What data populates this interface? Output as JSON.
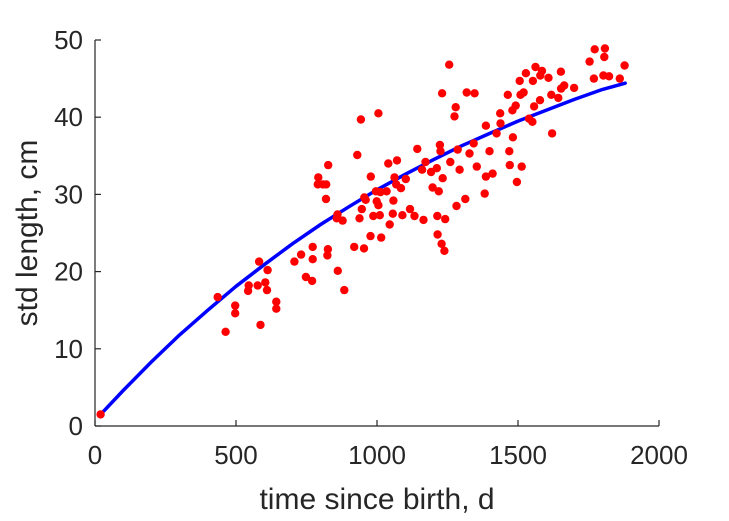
{
  "chart_data": {
    "type": "scatter",
    "title": "",
    "xlabel": "time since birth, d",
    "ylabel": "std length, cm",
    "xlim": [
      0,
      2000
    ],
    "ylim": [
      0,
      50
    ],
    "xticks": [
      0,
      500,
      1000,
      1500,
      2000
    ],
    "yticks": [
      0,
      10,
      20,
      30,
      40,
      50
    ],
    "grid": false,
    "legend": "none",
    "colors": {
      "points": "#ff0000",
      "curve": "#0000ff",
      "axes": "#262626"
    },
    "series": [
      {
        "kind": "scatter",
        "points": [
          [
            20,
            1.5
          ],
          [
            435,
            16.7
          ],
          [
            463,
            12.2
          ],
          [
            497,
            14.6
          ],
          [
            497,
            15.6
          ],
          [
            543,
            17.5
          ],
          [
            545,
            18.2
          ],
          [
            577,
            18.2
          ],
          [
            582,
            21.3
          ],
          [
            587,
            13.1
          ],
          [
            604,
            18.6
          ],
          [
            610,
            17.6
          ],
          [
            612,
            20.2
          ],
          [
            643,
            16.1
          ],
          [
            643,
            15.2
          ],
          [
            707,
            21.3
          ],
          [
            731,
            22.2
          ],
          [
            748,
            19.3
          ],
          [
            770,
            18.8
          ],
          [
            772,
            21.6
          ],
          [
            772,
            23.2
          ],
          [
            790,
            31.3
          ],
          [
            792,
            32.2
          ],
          [
            808,
            31.3
          ],
          [
            819,
            29.4
          ],
          [
            820,
            31.3
          ],
          [
            824,
            22.1
          ],
          [
            826,
            22.9
          ],
          [
            827,
            33.8
          ],
          [
            857,
            26.9
          ],
          [
            860,
            27.4
          ],
          [
            861,
            20.1
          ],
          [
            878,
            26.6
          ],
          [
            884,
            17.6
          ],
          [
            919,
            23.2
          ],
          [
            930,
            35.1
          ],
          [
            938,
            26.9
          ],
          [
            943,
            39.7
          ],
          [
            946,
            28.1
          ],
          [
            954,
            23.0
          ],
          [
            955,
            29.6
          ],
          [
            960,
            29.3
          ],
          [
            977,
            24.6
          ],
          [
            978,
            32.3
          ],
          [
            987,
            27.2
          ],
          [
            996,
            30.4
          ],
          [
            999,
            29.1
          ],
          [
            1005,
            40.5
          ],
          [
            1005,
            28.6
          ],
          [
            1010,
            27.3
          ],
          [
            1012,
            30.3
          ],
          [
            1015,
            24.4
          ],
          [
            1034,
            30.4
          ],
          [
            1040,
            34.0
          ],
          [
            1045,
            26.1
          ],
          [
            1056,
            27.5
          ],
          [
            1058,
            29.2
          ],
          [
            1062,
            32.2
          ],
          [
            1068,
            31.3
          ],
          [
            1071,
            34.4
          ],
          [
            1085,
            30.8
          ],
          [
            1090,
            27.3
          ],
          [
            1102,
            32.0
          ],
          [
            1117,
            28.1
          ],
          [
            1133,
            27.2
          ],
          [
            1143,
            35.9
          ],
          [
            1160,
            33.2
          ],
          [
            1165,
            26.7
          ],
          [
            1172,
            34.2
          ],
          [
            1192,
            32.9
          ],
          [
            1197,
            30.9
          ],
          [
            1212,
            33.4
          ],
          [
            1214,
            27.2
          ],
          [
            1215,
            24.8
          ],
          [
            1219,
            30.4
          ],
          [
            1223,
            36.4
          ],
          [
            1225,
            35.6
          ],
          [
            1229,
            23.6
          ],
          [
            1231,
            43.1
          ],
          [
            1233,
            32.1
          ],
          [
            1239,
            22.7
          ],
          [
            1242,
            26.8
          ],
          [
            1256,
            46.8
          ],
          [
            1260,
            34.2
          ],
          [
            1275,
            40.1
          ],
          [
            1279,
            41.3
          ],
          [
            1282,
            28.5
          ],
          [
            1286,
            35.8
          ],
          [
            1293,
            33.2
          ],
          [
            1313,
            29.4
          ],
          [
            1318,
            43.2
          ],
          [
            1328,
            35.3
          ],
          [
            1343,
            36.6
          ],
          [
            1346,
            43.1
          ],
          [
            1354,
            33.6
          ],
          [
            1382,
            30.1
          ],
          [
            1386,
            32.3
          ],
          [
            1386,
            38.9
          ],
          [
            1399,
            35.6
          ],
          [
            1410,
            32.7
          ],
          [
            1424,
            37.9
          ],
          [
            1437,
            40.5
          ],
          [
            1438,
            39.2
          ],
          [
            1464,
            42.9
          ],
          [
            1469,
            35.6
          ],
          [
            1471,
            33.8
          ],
          [
            1480,
            40.9
          ],
          [
            1482,
            37.4
          ],
          [
            1492,
            41.5
          ],
          [
            1496,
            31.6
          ],
          [
            1506,
            44.7
          ],
          [
            1509,
            42.9
          ],
          [
            1513,
            33.6
          ],
          [
            1520,
            43.2
          ],
          [
            1528,
            45.7
          ],
          [
            1539,
            39.8
          ],
          [
            1551,
            39.4
          ],
          [
            1553,
            44.7
          ],
          [
            1557,
            41.4
          ],
          [
            1562,
            46.5
          ],
          [
            1578,
            42.2
          ],
          [
            1579,
            45.4
          ],
          [
            1585,
            46.0
          ],
          [
            1608,
            45.1
          ],
          [
            1618,
            42.9
          ],
          [
            1621,
            37.9
          ],
          [
            1643,
            42.5
          ],
          [
            1652,
            45.9
          ],
          [
            1653,
            43.7
          ],
          [
            1664,
            44.1
          ],
          [
            1699,
            43.8
          ],
          [
            1754,
            47.2
          ],
          [
            1769,
            45.0
          ],
          [
            1772,
            48.8
          ],
          [
            1803,
            45.4
          ],
          [
            1806,
            47.8
          ],
          [
            1808,
            48.9
          ],
          [
            1823,
            45.3
          ],
          [
            1861,
            45.0
          ],
          [
            1878,
            46.7
          ]
        ]
      },
      {
        "kind": "line",
        "x": [
          20,
          100,
          200,
          300,
          400,
          500,
          600,
          700,
          800,
          900,
          1000,
          1100,
          1200,
          1300,
          1400,
          1500,
          1600,
          1700,
          1800,
          1880
        ],
        "y": [
          1.5,
          4.6,
          8.3,
          11.8,
          15.0,
          18.1,
          20.9,
          23.6,
          26.1,
          28.4,
          30.6,
          32.6,
          34.5,
          36.3,
          37.9,
          39.5,
          40.9,
          42.3,
          43.6,
          44.4
        ]
      }
    ]
  }
}
